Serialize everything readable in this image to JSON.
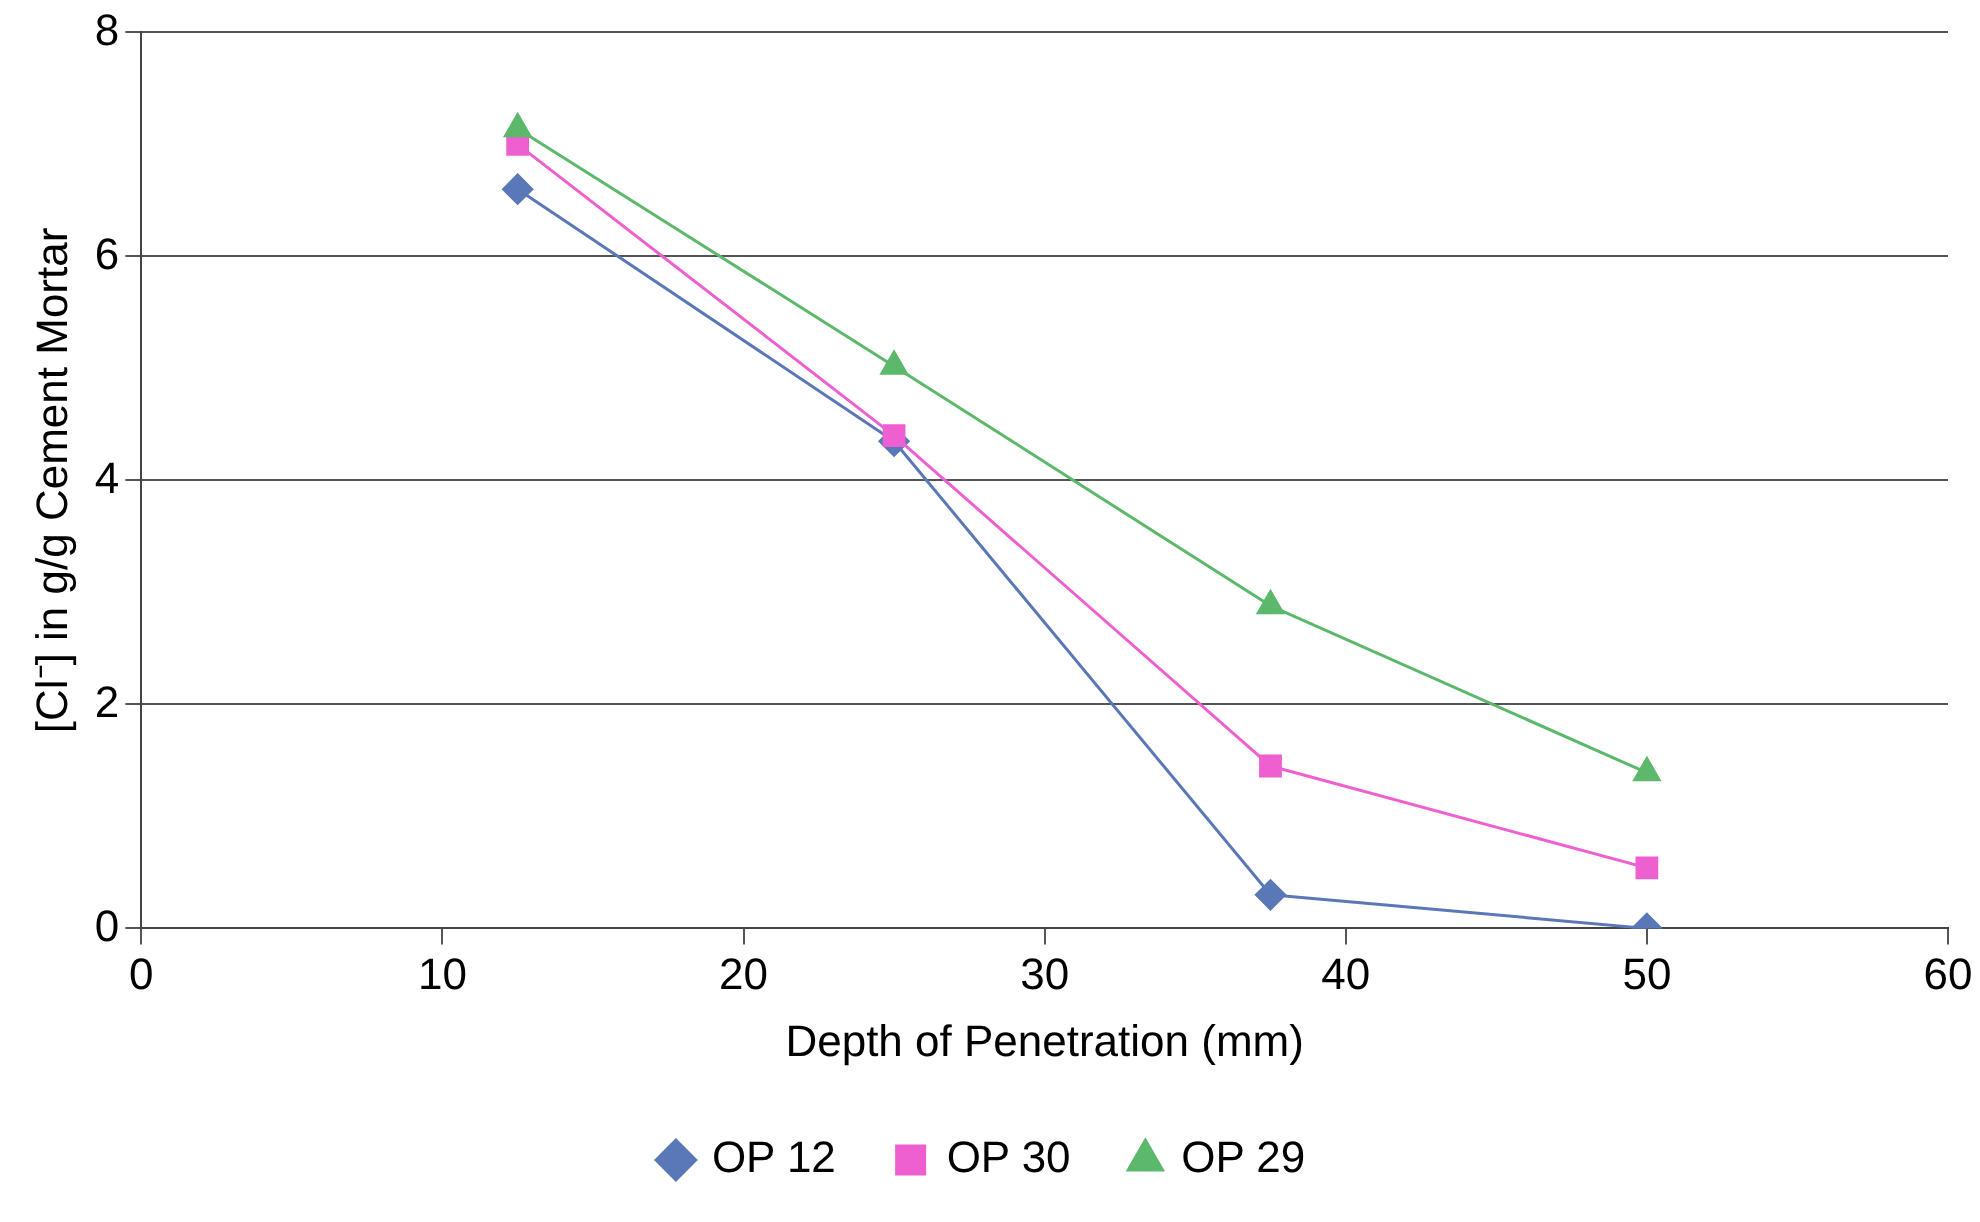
{
  "chart_data": {
    "type": "line",
    "xlabel": "Depth of Penetration (mm)",
    "ylabel": "[Cl⁻] in g/g Cement Mortar",
    "x": [
      12.5,
      25,
      37.5,
      50
    ],
    "series": [
      {
        "name": "OP 12",
        "color": "#5a78b8",
        "marker": "diamond",
        "values": [
          6.6,
          4.35,
          0.3,
          0.0
        ]
      },
      {
        "name": "OP 30",
        "color": "#ee5fcf",
        "marker": "square",
        "values": [
          7.0,
          4.4,
          1.45,
          0.54
        ]
      },
      {
        "name": "OP 29",
        "color": "#5cb86a",
        "marker": "triangle",
        "values": [
          7.14,
          5.02,
          2.88,
          1.39
        ]
      }
    ],
    "xlim": [
      0,
      60
    ],
    "xticks": [
      0,
      10,
      20,
      30,
      40,
      50,
      60
    ],
    "ylim": [
      0,
      8
    ],
    "yticks": [
      0,
      2,
      4,
      6,
      8
    ],
    "grid": "y",
    "legend": "bottom",
    "line_style": "solid"
  }
}
